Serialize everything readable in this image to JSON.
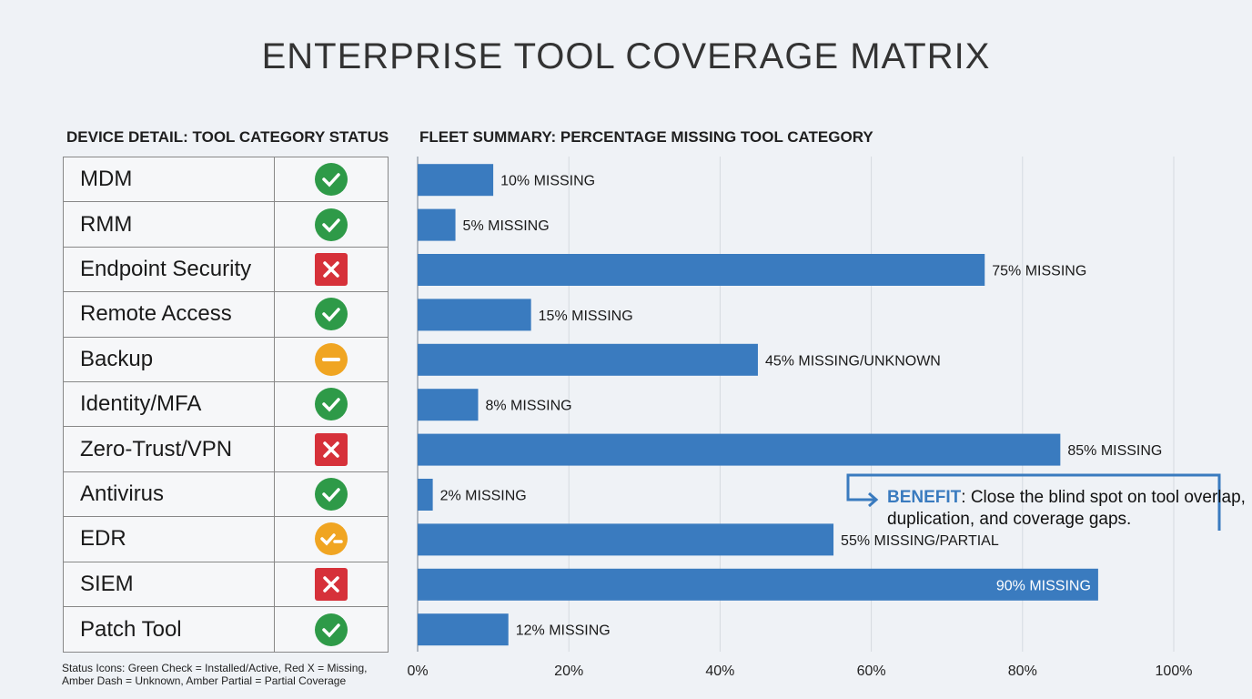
{
  "title": "ENTERPRISE TOOL COVERAGE MATRIX",
  "device_detail": {
    "heading": "DEVICE DETAIL: TOOL CATEGORY STATUS",
    "rows": [
      {
        "category": "MDM",
        "status": "installed"
      },
      {
        "category": "RMM",
        "status": "installed"
      },
      {
        "category": "Endpoint Security",
        "status": "missing"
      },
      {
        "category": "Remote Access",
        "status": "installed"
      },
      {
        "category": "Backup",
        "status": "unknown"
      },
      {
        "category": "Identity/MFA",
        "status": "installed"
      },
      {
        "category": "Zero-Trust/VPN",
        "status": "missing"
      },
      {
        "category": "Antivirus",
        "status": "installed"
      },
      {
        "category": "EDR",
        "status": "partial"
      },
      {
        "category": "SIEM",
        "status": "missing"
      },
      {
        "category": "Patch Tool",
        "status": "installed"
      }
    ],
    "legend_line1": "Status Icons: Green Check = Installed/Active, Red X = Missing,",
    "legend_line2": "Amber Dash = Unknown, Amber Partial = Partial Coverage",
    "colors": {
      "installed": "#2e9a48",
      "missing": "#d6313a",
      "unknown": "#f0a522",
      "partial": "#f0a522"
    }
  },
  "chart_data": {
    "type": "bar",
    "orientation": "horizontal",
    "title": "FLEET SUMMARY: PERCENTAGE MISSING TOOL CATEGORY",
    "categories": [
      "MDM",
      "RMM",
      "Endpoint Security",
      "Remote Access",
      "Backup",
      "Identity/MFA",
      "Zero-Trust/VPN",
      "Antivirus",
      "EDR",
      "SIEM",
      "Patch Tool"
    ],
    "values": [
      10,
      5,
      75,
      15,
      45,
      8,
      85,
      2,
      55,
      90,
      12
    ],
    "data_labels": [
      "10% MISSING",
      "5% MISSING",
      "75% MISSING",
      "15% MISSING",
      "45% MISSING/UNKNOWN",
      "8% MISSING",
      "85% MISSING",
      "2% MISSING",
      "55% MISSING/PARTIAL",
      "90% MISSING",
      "12% MISSING"
    ],
    "xlim": [
      0,
      100
    ],
    "x_ticks": [
      "0%",
      "20%",
      "40%",
      "60%",
      "80%",
      "100%"
    ],
    "grid": true,
    "bar_color": "#3a7bbf"
  },
  "callout": {
    "label": "BENEFIT",
    "text": ": Close the blind spot on tool overlap, duplication, and coverage gaps."
  }
}
